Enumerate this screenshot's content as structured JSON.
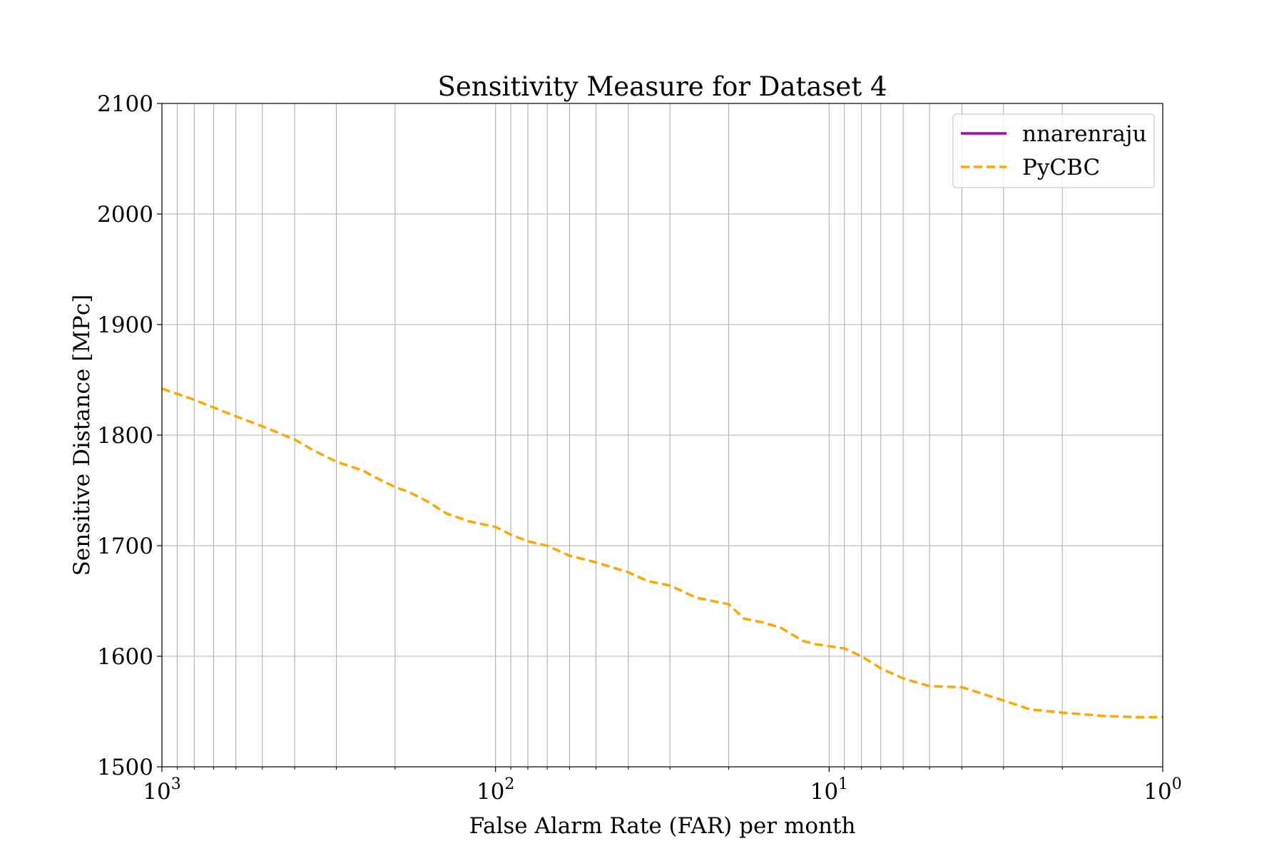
{
  "chart_data": {
    "type": "line",
    "title": "Sensitivity Measure for Dataset 4",
    "xlabel": "False Alarm Rate (FAR) per month",
    "ylabel": "Sensitive Distance [MPc]",
    "x_scale": "log",
    "x_inverted": true,
    "xlim": [
      1000,
      1
    ],
    "ylim": [
      1500,
      2100
    ],
    "grid": true,
    "legend_position": "top-right",
    "x_ticks": [
      {
        "base": "10",
        "exp": "3",
        "value": 1000
      },
      {
        "base": "10",
        "exp": "2",
        "value": 100
      },
      {
        "base": "10",
        "exp": "1",
        "value": 10
      },
      {
        "base": "10",
        "exp": "0",
        "value": 1
      }
    ],
    "y_ticks": [
      "1500",
      "1600",
      "1700",
      "1800",
      "1900",
      "2000",
      "2100"
    ],
    "series": [
      {
        "name": "nnarenraju",
        "color": "#b000b5",
        "style": "solid",
        "x": [],
        "y": []
      },
      {
        "name": "PyCBC",
        "color": "#ffa500",
        "style": "dashed",
        "x": [
          1000,
          800,
          700,
          600,
          500,
          400,
          350,
          300,
          250,
          230,
          200,
          180,
          160,
          140,
          120,
          100,
          90,
          80,
          70,
          60,
          50,
          40,
          35,
          30,
          25,
          20,
          18,
          16,
          14,
          12,
          11,
          9,
          8,
          7,
          6,
          5,
          4,
          3,
          2.5,
          2,
          1.5,
          1.2,
          1
        ],
        "y": [
          1842,
          1832,
          1825,
          1817,
          1808,
          1796,
          1786,
          1776,
          1768,
          1762,
          1753,
          1748,
          1740,
          1729,
          1722,
          1717,
          1710,
          1704,
          1700,
          1691,
          1685,
          1676,
          1668,
          1664,
          1653,
          1647,
          1634,
          1631,
          1626,
          1614,
          1611,
          1607,
          1600,
          1589,
          1580,
          1573,
          1572,
          1560,
          1552,
          1549,
          1546,
          1545,
          1545
        ]
      }
    ]
  }
}
